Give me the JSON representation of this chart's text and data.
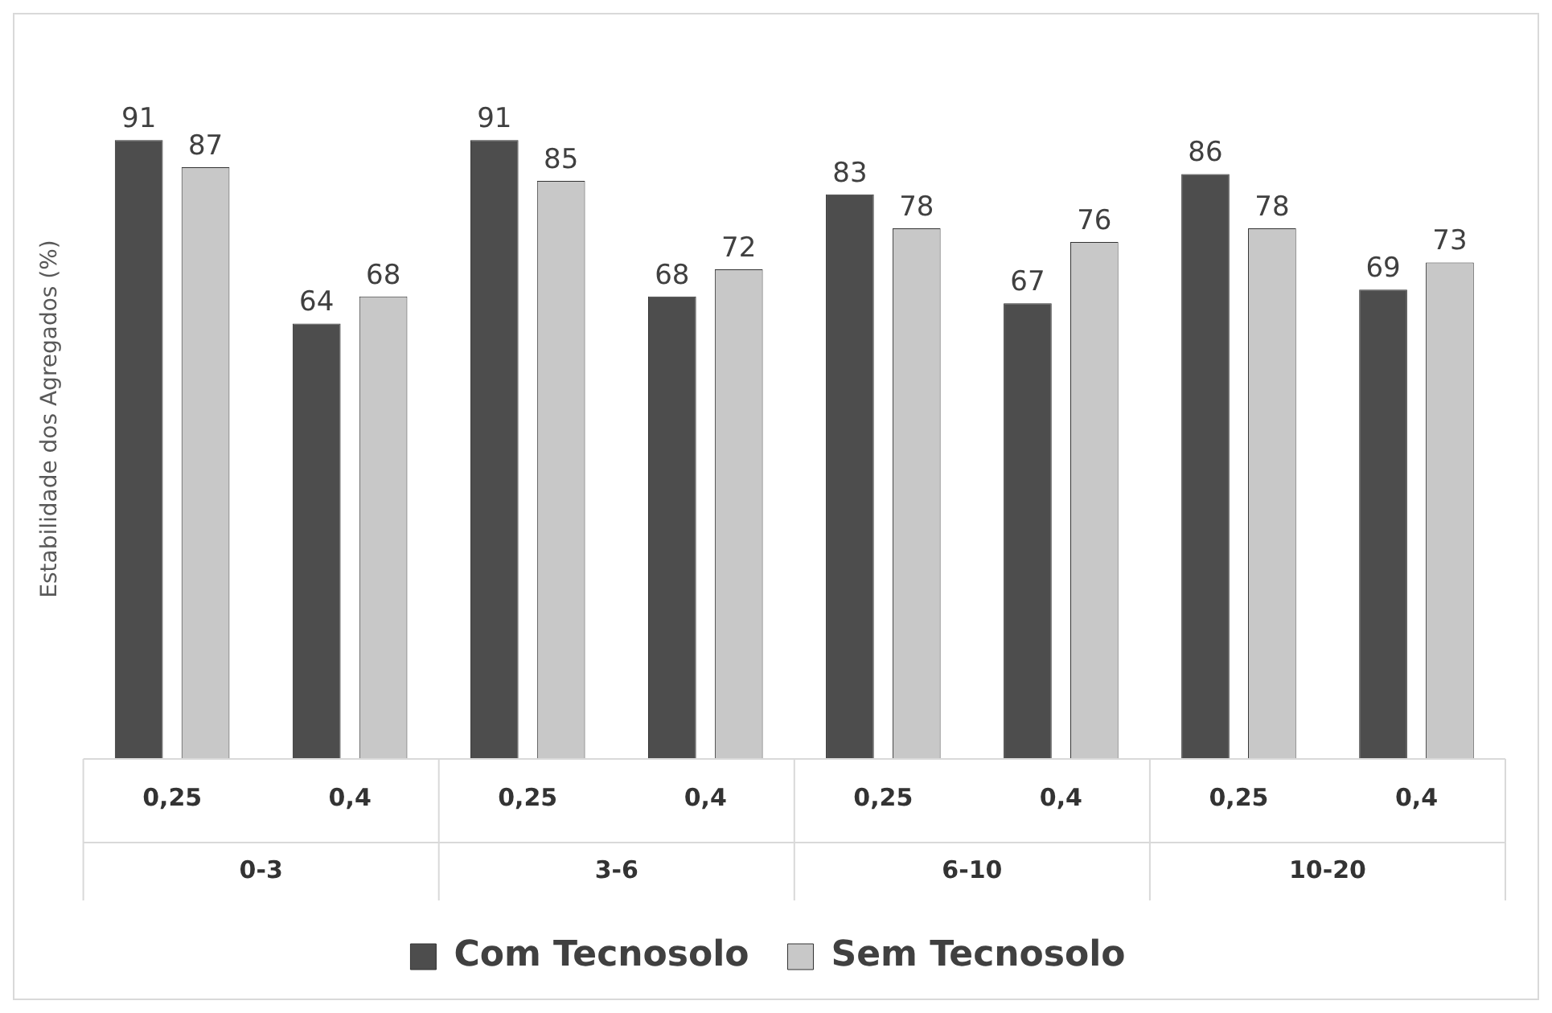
{
  "chart_data": {
    "type": "bar",
    "ylabel": "Estabilidade dos Agregados (%)",
    "categories": [
      "0,25",
      "0,4",
      "0,25",
      "0,4",
      "0,25",
      "0,4",
      "0,25",
      "0,4"
    ],
    "annotations": [
      "0-3",
      "3-6",
      "6-10",
      "10-20"
    ],
    "series": [
      {
        "name": "Com Tecnosolo",
        "color": "#4d4d4d",
        "values": [
          91,
          64,
          91,
          68,
          83,
          67,
          86,
          69
        ]
      },
      {
        "name": "Sem Tecnosolo",
        "color": "#c8c8c8",
        "values": [
          87,
          68,
          85,
          72,
          78,
          76,
          78,
          73
        ]
      }
    ],
    "data_labels": true,
    "grid": false,
    "legend": "bottom",
    "tick_labels": "x"
  }
}
